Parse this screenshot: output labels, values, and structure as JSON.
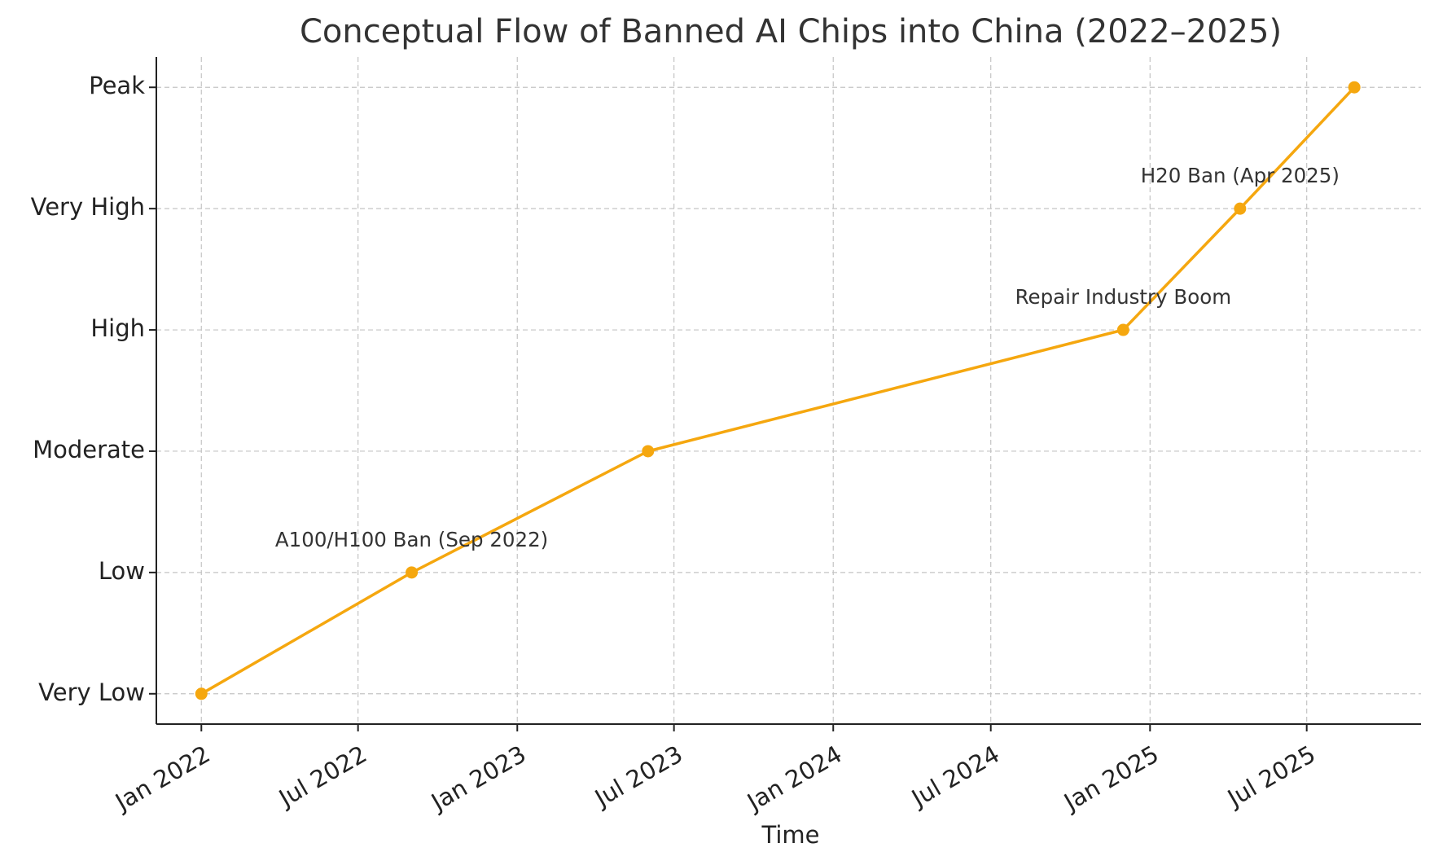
{
  "chart_data": {
    "type": "line",
    "title": "Conceptual Flow of Banned AI Chips into China (2022–2025)",
    "xlabel": "Time",
    "ylabel": "",
    "x_axis_type": "date",
    "xlim": [
      "2021-11-10",
      "2025-11-10"
    ],
    "x_ticks": [
      {
        "date": "2022-01-01",
        "label": "Jan 2022"
      },
      {
        "date": "2022-07-01",
        "label": "Jul 2022"
      },
      {
        "date": "2023-01-01",
        "label": "Jan 2023"
      },
      {
        "date": "2023-07-01",
        "label": "Jul 2023"
      },
      {
        "date": "2024-01-01",
        "label": "Jan 2024"
      },
      {
        "date": "2024-07-01",
        "label": "Jul 2024"
      },
      {
        "date": "2025-01-01",
        "label": "Jan 2025"
      },
      {
        "date": "2025-07-01",
        "label": "Jul 2025"
      }
    ],
    "y_categories": [
      "Very Low",
      "Low",
      "Moderate",
      "High",
      "Very High",
      "Peak"
    ],
    "ylim": [
      -0.25,
      5.25
    ],
    "grid": true,
    "color": "#f5a70f",
    "series": [
      {
        "name": "",
        "points": [
          {
            "x": "2022-01-01",
            "y": 0
          },
          {
            "x": "2022-09-01",
            "y": 1
          },
          {
            "x": "2023-06-01",
            "y": 2
          },
          {
            "x": "2024-12-01",
            "y": 3
          },
          {
            "x": "2025-04-15",
            "y": 4
          },
          {
            "x": "2025-08-25",
            "y": 5
          }
        ]
      }
    ],
    "annotations": [
      {
        "text": "A100/H100 Ban (Sep 2022)",
        "x": "2022-09-01",
        "y": 1
      },
      {
        "text": "Repair Industry Boom",
        "x": "2024-12-01",
        "y": 3
      },
      {
        "text": "H20 Ban (Apr 2025)",
        "x": "2025-04-15",
        "y": 4
      }
    ]
  }
}
